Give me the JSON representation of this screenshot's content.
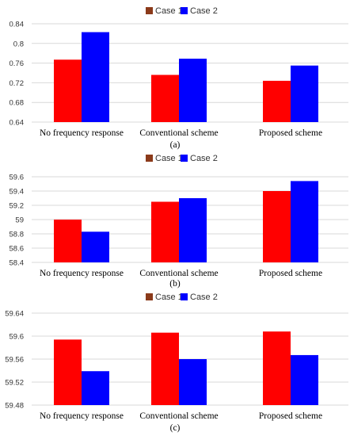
{
  "chart_data": [
    {
      "type": "bar",
      "caption": "(a)",
      "categories": [
        "No frequency response",
        "Conventional scheme",
        "Proposed scheme"
      ],
      "series": [
        {
          "name": "Case 1",
          "values": [
            0.767,
            0.736,
            0.724
          ]
        },
        {
          "name": "Case 2",
          "values": [
            0.823,
            0.769,
            0.755
          ]
        }
      ],
      "ylim": [
        0.64,
        0.84
      ],
      "yticks": [
        "0.64",
        "0.68",
        "0.72",
        "0.76",
        "0.8",
        "0.84"
      ],
      "grid": true,
      "legend": "top-center"
    },
    {
      "type": "bar",
      "caption": "(b)",
      "categories": [
        "No frequency response",
        "Conventional scheme",
        "Proposed scheme"
      ],
      "series": [
        {
          "name": "Case 1",
          "values": [
            59.0,
            59.25,
            59.4
          ]
        },
        {
          "name": "Case 2",
          "values": [
            58.83,
            59.3,
            59.54
          ]
        }
      ],
      "ylim": [
        58.4,
        59.7
      ],
      "yticks": [
        "58.4",
        "58.6",
        "58.8",
        "59",
        "59.2",
        "59.4",
        "59.6"
      ],
      "grid": true,
      "legend": "top-center"
    },
    {
      "type": "bar",
      "caption": "(c)",
      "categories": [
        "No frequency response",
        "Conventional scheme",
        "Proposed scheme"
      ],
      "series": [
        {
          "name": "Case 1",
          "values": [
            59.594,
            59.606,
            59.608
          ]
        },
        {
          "name": "Case 2",
          "values": [
            59.539,
            59.56,
            59.567
          ]
        }
      ],
      "ylim": [
        59.48,
        59.64
      ],
      "yticks": [
        "59.48",
        "59.52",
        "59.56",
        "59.6",
        "59.64"
      ],
      "grid": true,
      "legend": "top-center"
    }
  ],
  "colors": {
    "case1": "#ff0000",
    "case2": "#0000ff",
    "legend_case1": "#8b3a1a"
  }
}
